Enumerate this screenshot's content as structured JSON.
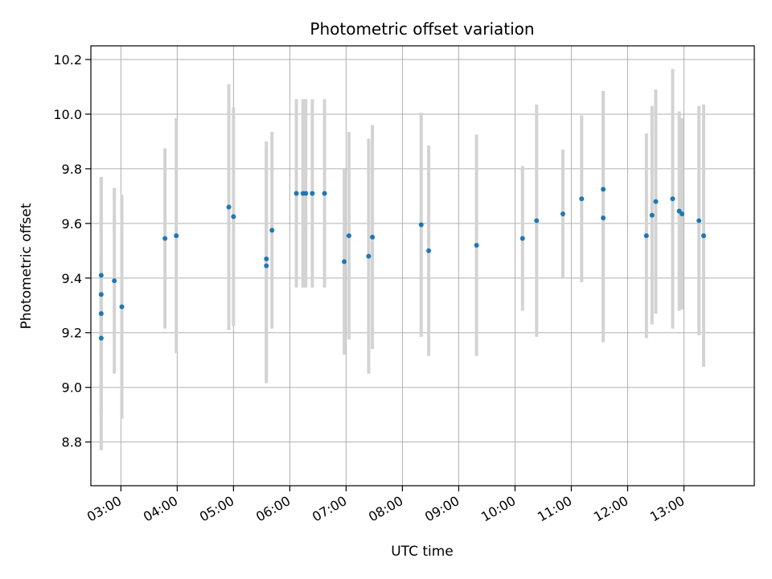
{
  "chart_data": {
    "type": "scatter",
    "title": "Photometric offset variation",
    "xlabel": "UTC time",
    "ylabel": "Photometric offset",
    "x_axis_type": "time",
    "xlim": [
      "02:28",
      "14:15"
    ],
    "ylim": [
      8.64,
      10.25
    ],
    "grid": true,
    "x_ticks": [
      "03:00",
      "04:00",
      "05:00",
      "06:00",
      "07:00",
      "08:00",
      "09:00",
      "10:00",
      "11:00",
      "12:00",
      "13:00"
    ],
    "y_ticks": [
      "8.8",
      "9.0",
      "9.2",
      "9.4",
      "9.6",
      "9.8",
      "10.0",
      "10.2"
    ],
    "point_color": "#1f77b4",
    "errorbar_color": "#d3d3d3",
    "series": [
      {
        "points": [
          {
            "x": "02:39",
            "y": 9.41,
            "yerr": 0.36
          },
          {
            "x": "02:39",
            "y": 9.34,
            "yerr": 0.43
          },
          {
            "x": "02:39",
            "y": 9.27,
            "yerr": 0.5
          },
          {
            "x": "02:39",
            "y": 9.18,
            "yerr": 0.28
          },
          {
            "x": "02:53",
            "y": 9.39,
            "yerr": 0.34
          },
          {
            "x": "03:01",
            "y": 9.295,
            "yerr": 0.41
          },
          {
            "x": "03:47",
            "y": 9.545,
            "yerr": 0.33
          },
          {
            "x": "03:59",
            "y": 9.555,
            "yerr": 0.43
          },
          {
            "x": "04:55",
            "y": 9.66,
            "yerr": 0.45
          },
          {
            "x": "05:00",
            "y": 9.625,
            "yerr": 0.4
          },
          {
            "x": "05:35",
            "y": 9.47,
            "yerr": 0.43
          },
          {
            "x": "05:35",
            "y": 9.445,
            "yerr": 0.43
          },
          {
            "x": "05:41",
            "y": 9.575,
            "yerr": 0.36
          },
          {
            "x": "06:07",
            "y": 9.71,
            "yerr": 0.345
          },
          {
            "x": "06:14",
            "y": 9.71,
            "yerr": 0.345
          },
          {
            "x": "06:17",
            "y": 9.71,
            "yerr": 0.345
          },
          {
            "x": "06:24",
            "y": 9.71,
            "yerr": 0.345
          },
          {
            "x": "06:37",
            "y": 9.71,
            "yerr": 0.345
          },
          {
            "x": "06:58",
            "y": 9.46,
            "yerr": 0.34
          },
          {
            "x": "07:03",
            "y": 9.555,
            "yerr": 0.38
          },
          {
            "x": "07:24",
            "y": 9.48,
            "yerr": 0.43
          },
          {
            "x": "07:28",
            "y": 9.55,
            "yerr": 0.41
          },
          {
            "x": "08:20",
            "y": 9.595,
            "yerr": 0.41
          },
          {
            "x": "08:28",
            "y": 9.5,
            "yerr": 0.385
          },
          {
            "x": "09:19",
            "y": 9.52,
            "yerr": 0.405
          },
          {
            "x": "10:08",
            "y": 9.545,
            "yerr": 0.265
          },
          {
            "x": "10:23",
            "y": 9.61,
            "yerr": 0.425
          },
          {
            "x": "10:51",
            "y": 9.635,
            "yerr": 0.235
          },
          {
            "x": "11:11",
            "y": 9.69,
            "yerr": 0.305
          },
          {
            "x": "11:34",
            "y": 9.725,
            "yerr": 0.36
          },
          {
            "x": "11:34",
            "y": 9.62,
            "yerr": 0.455
          },
          {
            "x": "12:20",
            "y": 9.555,
            "yerr": 0.375
          },
          {
            "x": "12:26",
            "y": 9.63,
            "yerr": 0.4
          },
          {
            "x": "12:30",
            "y": 9.68,
            "yerr": 0.41
          },
          {
            "x": "12:48",
            "y": 9.69,
            "yerr": 0.475
          },
          {
            "x": "12:55",
            "y": 9.645,
            "yerr": 0.365
          },
          {
            "x": "12:58",
            "y": 9.635,
            "yerr": 0.35
          },
          {
            "x": "13:16",
            "y": 9.61,
            "yerr": 0.42
          },
          {
            "x": "13:21",
            "y": 9.555,
            "yerr": 0.48
          }
        ]
      }
    ]
  }
}
